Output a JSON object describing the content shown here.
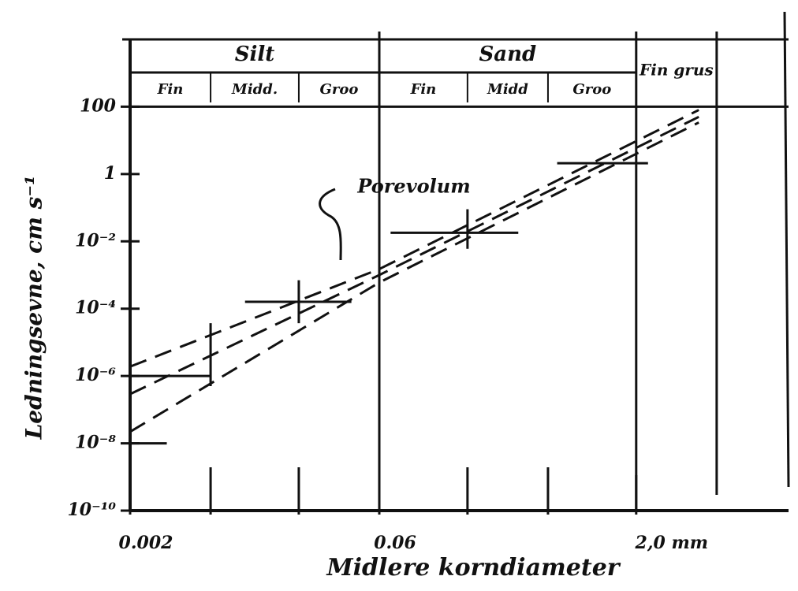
{
  "chart_data": {
    "type": "line",
    "x_label": "Midlere korndiameter",
    "y_label": "Ledningsevne, cm s⁻¹",
    "annotation": "Porevolum",
    "log_x": true,
    "log_y": true,
    "xlim": [
      0.002,
      16
    ],
    "ylim": [
      1e-10,
      10000
    ],
    "xticks": [
      0.002,
      0.06,
      {
        "value": 2,
        "label": "2,0 mm"
      }
    ],
    "minor_xticks": [
      0.006,
      0.02,
      0.2,
      0.6
    ],
    "yticks": [
      {
        "value": 1e-10,
        "label": "10⁻¹⁰"
      },
      {
        "value": 1e-08,
        "label": "10⁻⁸"
      },
      {
        "value": 1e-06,
        "label": "10⁻⁶"
      },
      {
        "value": 0.0001,
        "label": "10⁻⁴"
      },
      {
        "value": 0.01,
        "label": "10⁻²"
      },
      1,
      100
    ],
    "classes": [
      {
        "name": "Silt",
        "from": 0.002,
        "to": 0.06,
        "sub": [
          "Fin",
          "Midd.",
          "Groo"
        ],
        "bounds": [
          0.002,
          0.006,
          0.02,
          0.06
        ]
      },
      {
        "name": "Sand",
        "from": 0.06,
        "to": 2,
        "sub": [
          "Fin",
          "Midd",
          "Groo"
        ],
        "bounds": [
          0.06,
          0.2,
          0.6,
          2
        ]
      },
      {
        "name": "Fin grus",
        "from": 2,
        "to": 6
      }
    ],
    "series": [
      {
        "color": "#111111",
        "x": [
          0.002,
          0.06,
          4.7
        ],
        "values": [
          1.9e-06,
          0.0015,
          80
        ]
      },
      {
        "color": "#111111",
        "x": [
          0.002,
          0.06,
          4.7
        ],
        "values": [
          2.9e-07,
          0.001,
          50
        ]
      },
      {
        "color": "#111111",
        "x": [
          0.002,
          0.06,
          4.7
        ],
        "values": [
          2.2e-08,
          0.0006,
          34
        ]
      }
    ],
    "ranges": [
      {
        "x0": 0.002,
        "x1": 0.0033,
        "y": 1e-08
      },
      {
        "x0": 0.002,
        "x1": 0.006,
        "y": 1e-06
      },
      {
        "x0": 0.0096,
        "x1": 0.041,
        "y": 0.00016
      },
      {
        "x0": 0.07,
        "x1": 0.4,
        "y": 0.018
      },
      {
        "x0": 0.68,
        "x1": 2.35,
        "y": 2.1
      }
    ],
    "error_bars": [
      {
        "x": 0.006,
        "low": 5e-07,
        "high": 3.7e-05
      },
      {
        "x": 0.02,
        "low": 3.7e-05,
        "high": 0.0007
      },
      {
        "x": 0.2,
        "low": 0.006,
        "high": 0.09
      }
    ]
  }
}
